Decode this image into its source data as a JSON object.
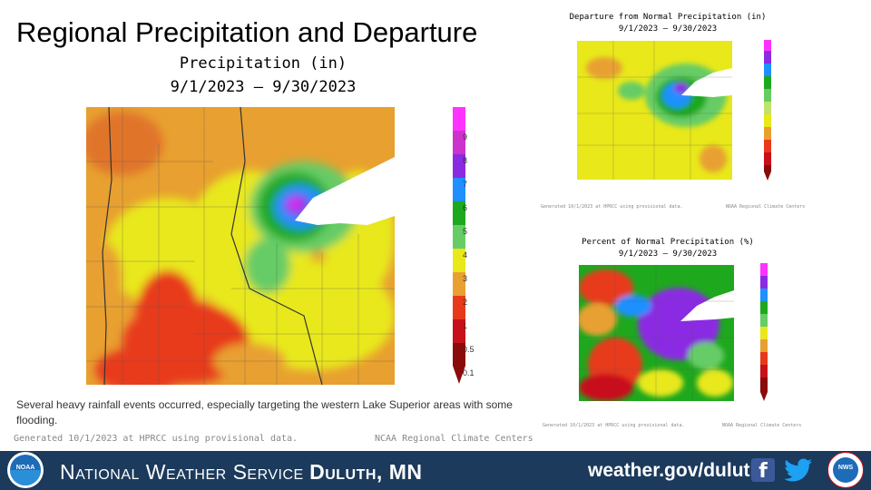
{
  "page": {
    "title": "Regional Precipitation and Departure",
    "main_map": {
      "subtitle": "Precipitation (in)",
      "date_range": "9/1/2023 – 9/30/2023",
      "legend_labels": [
        "9",
        "8",
        "7",
        "6",
        "5",
        "4",
        "3",
        "2",
        "1",
        "0.5",
        "0.1"
      ],
      "legend_colors": [
        "#ff33ff",
        "#cc33cc",
        "#8a2be2",
        "#1e90ff",
        "#1ea81e",
        "#66cc66",
        "#e8e81a",
        "#e8a030",
        "#e83a1a",
        "#c8101a",
        "#8b0a0a"
      ],
      "credit_left": "Generated 10/1/2023 at HPRCC using provisional data.",
      "credit_right": "NCAA Regional Climate Centers"
    },
    "departure_map": {
      "title": "Departure from Normal Precipitation (in)",
      "date_range": "9/1/2023 – 9/30/2023",
      "credit_left": "Generated 10/1/2023 at HPRCC using provisional data.",
      "credit_right": "NOAA Regional Climate Centers"
    },
    "percent_map": {
      "title": "Percent of Normal Precipitation (%)",
      "date_range": "9/1/2023 – 9/30/2023",
      "credit_left": "Generated 10/1/2023 at HPRCC using provisional data.",
      "credit_right": "NOAA Regional Climate Centers"
    },
    "caption": "Several heavy rainfall events occurred, especially targeting the western Lake Superior areas with some flooding.",
    "footer": {
      "org_prefix": "National Weather Service",
      "office": "Duluth, MN",
      "url": "weather.gov/duluth",
      "noaa_logo_text": "NOAA",
      "nws_logo_text": "NWS"
    },
    "colors": {
      "footer_bg": "#1b3a5c",
      "facebook": "#3b5998",
      "twitter": "#1da1f2"
    }
  }
}
